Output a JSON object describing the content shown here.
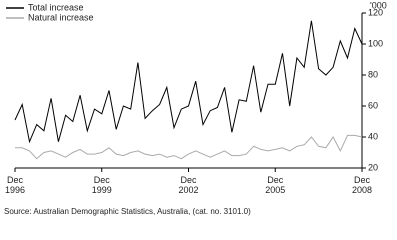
{
  "chart_data": {
    "type": "line",
    "ylabel": "'000",
    "categories": [
      "Dec 1996",
      null,
      null,
      null,
      null,
      null,
      null,
      null,
      null,
      null,
      null,
      null,
      "Dec 1999",
      null,
      null,
      null,
      null,
      null,
      null,
      null,
      null,
      null,
      null,
      null,
      "Dec 2002",
      null,
      null,
      null,
      null,
      null,
      null,
      null,
      null,
      null,
      null,
      null,
      "Dec 2005",
      null,
      null,
      null,
      null,
      null,
      null,
      null,
      null,
      null,
      null,
      null,
      "Dec 2008"
    ],
    "series": [
      {
        "name": "Total increase",
        "color": "#000000",
        "values": [
          51,
          61,
          37,
          48,
          44,
          65,
          37,
          54,
          50,
          67,
          44,
          58,
          55,
          70,
          45,
          60,
          58,
          88,
          52,
          57,
          61,
          72,
          46,
          58,
          60,
          76,
          48,
          57,
          59,
          72,
          43,
          64,
          63,
          86,
          56,
          74,
          74,
          94,
          60,
          91,
          85,
          115,
          84,
          80,
          85,
          102,
          91,
          110,
          100
        ]
      },
      {
        "name": "Natural increase",
        "color": "#aaaaaa",
        "values": [
          33,
          33,
          31,
          26,
          30,
          31,
          29,
          27,
          30,
          32,
          29,
          29,
          30,
          33,
          29,
          28,
          30,
          31,
          29,
          28,
          29,
          27,
          28,
          26,
          29,
          31,
          29,
          27,
          29,
          31,
          28,
          28,
          29,
          34,
          32,
          31,
          32,
          33,
          31,
          34,
          35,
          40,
          34,
          33,
          40,
          31,
          41,
          41,
          40
        ]
      }
    ],
    "ylim": [
      20,
      120
    ],
    "yticks": [
      20,
      40,
      60,
      80,
      100,
      120
    ],
    "grid": false,
    "legend": "top-left",
    "source": "Source: Australian Demographic Statistics, Australia, (cat. no. 3101.0)"
  }
}
